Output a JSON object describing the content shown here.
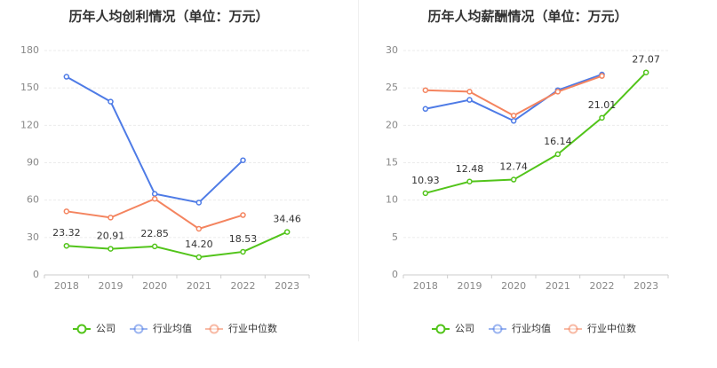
{
  "chart_data": [
    {
      "type": "line",
      "title": "历年人均创利情况（单位：万元）",
      "categories": [
        "2018",
        "2019",
        "2020",
        "2021",
        "2022",
        "2023"
      ],
      "yticks": [
        0,
        30,
        60,
        90,
        120,
        150,
        180
      ],
      "ylim": [
        0,
        180
      ],
      "grid": true,
      "legend_position": "bottom",
      "series": [
        {
          "name": "公司",
          "color": "#52c41a",
          "values": [
            23.32,
            20.91,
            22.85,
            14.2,
            18.53,
            34.46
          ],
          "labels": [
            "23.32",
            "20.91",
            "22.85",
            "14.20",
            "18.53",
            "34.46"
          ]
        },
        {
          "name": "行业均值",
          "color": "#4e7be6",
          "values": [
            159,
            139,
            65,
            58,
            92,
            null
          ]
        },
        {
          "name": "行业中位数",
          "color": "#f4845f",
          "values": [
            51,
            46,
            61,
            37,
            48,
            null
          ]
        }
      ]
    },
    {
      "type": "line",
      "title": "历年人均薪酬情况（单位：万元）",
      "categories": [
        "2018",
        "2019",
        "2020",
        "2021",
        "2022",
        "2023"
      ],
      "yticks": [
        0,
        5,
        10,
        15,
        20,
        25,
        30
      ],
      "ylim": [
        0,
        30
      ],
      "grid": true,
      "legend_position": "bottom",
      "series": [
        {
          "name": "公司",
          "color": "#52c41a",
          "values": [
            10.93,
            12.48,
            12.74,
            16.14,
            21.01,
            27.07
          ],
          "labels": [
            "10.93",
            "12.48",
            "12.74",
            "16.14",
            "21.01",
            "27.07"
          ]
        },
        {
          "name": "行业均值",
          "color": "#4e7be6",
          "values": [
            22.2,
            23.4,
            20.6,
            24.7,
            26.8,
            null
          ]
        },
        {
          "name": "行业中位数",
          "color": "#f4845f",
          "values": [
            24.7,
            24.5,
            21.3,
            24.5,
            26.6,
            null
          ]
        }
      ]
    }
  ]
}
